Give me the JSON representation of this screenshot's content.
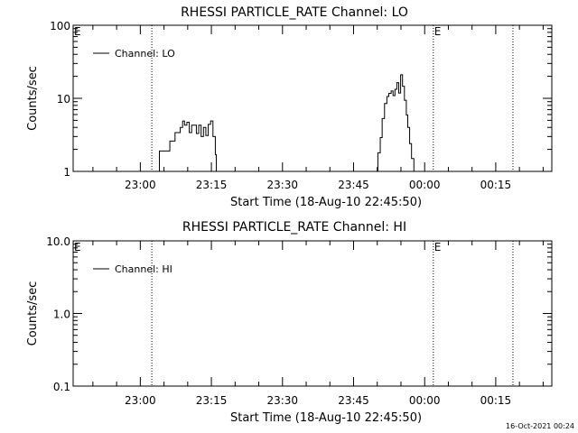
{
  "footer_timestamp": "16-Oct-2021 00:24",
  "chart_data": [
    {
      "type": "line",
      "title": "RHESSI PARTICLE_RATE Channel: LO",
      "xlabel": "Start Time (18-Aug-10 22:45:50)",
      "ylabel": "Counts/sec",
      "y_scale": "log",
      "ylim": [
        1,
        100
      ],
      "y_ticks": [
        1,
        10,
        100
      ],
      "y_tick_labels": [
        "1",
        "10",
        "100"
      ],
      "x_tick_labels": [
        "23:00",
        "23:15",
        "23:30",
        "23:45",
        "00:00",
        "00:15"
      ],
      "x_tick_minutes": [
        14.17,
        29.17,
        44.17,
        59.17,
        74.17,
        89.17
      ],
      "xlim_minutes": [
        0,
        101
      ],
      "event_markers_minutes": [
        16.6,
        76.0,
        92.8
      ],
      "event_marker_labels": [
        "",
        "E",
        ""
      ],
      "edge_label": "E",
      "legend": {
        "position": "top-left",
        "entries": [
          "Channel: LO"
        ]
      },
      "series": [
        {
          "name": "Channel: LO",
          "x": [
            17.9,
            18.2,
            20.2,
            20.4,
            21.2,
            21.5,
            22.2,
            22.6,
            23.1,
            23.5,
            24.0,
            24.5,
            25.0,
            25.5,
            26.0,
            26.5,
            27.0,
            27.5,
            28.0,
            28.5,
            29.0,
            29.5,
            30.0,
            30.2
          ],
          "values": [
            1,
            1.9,
            1.9,
            2.6,
            2.6,
            3.4,
            3.4,
            4.0,
            4.9,
            4.3,
            4.7,
            3.4,
            4.3,
            4.3,
            3.3,
            4.3,
            3.0,
            4.0,
            3.1,
            4.4,
            4.9,
            3.0,
            1.7,
            1
          ],
          "mode": "steps"
        },
        {
          "name": "Channel: LO",
          "x": [
            63.9,
            64.3,
            64.8,
            65.2,
            65.7,
            66.2,
            66.6,
            67.1,
            67.5,
            67.9,
            68.3,
            68.7,
            69.1,
            69.5,
            69.9,
            70.3,
            70.6,
            71.0,
            71.4,
            71.9
          ],
          "values": [
            1,
            1.8,
            2.9,
            5.3,
            8.5,
            10.6,
            11.7,
            12.6,
            10.9,
            13.3,
            16.4,
            11.8,
            21.0,
            14.6,
            9.4,
            5.9,
            4.0,
            2.4,
            1.5,
            1
          ],
          "mode": "steps"
        }
      ]
    },
    {
      "type": "line",
      "title": "RHESSI PARTICLE_RATE Channel: HI",
      "xlabel": "Start Time (18-Aug-10 22:45:50)",
      "ylabel": "Counts/sec",
      "y_scale": "log",
      "ylim": [
        0.1,
        10
      ],
      "y_ticks": [
        0.1,
        1,
        10
      ],
      "y_tick_labels": [
        "0.1",
        "1.0",
        "10.0"
      ],
      "x_tick_labels": [
        "23:00",
        "23:15",
        "23:30",
        "23:45",
        "00:00",
        "00:15"
      ],
      "x_tick_minutes": [
        14.17,
        29.17,
        44.17,
        59.17,
        74.17,
        89.17
      ],
      "xlim_minutes": [
        0,
        101
      ],
      "event_markers_minutes": [
        16.6,
        76.0,
        92.8
      ],
      "event_marker_labels": [
        "",
        "E",
        ""
      ],
      "edge_label": "E",
      "legend": {
        "position": "top-left",
        "entries": [
          "Channel: HI"
        ]
      },
      "series": []
    }
  ]
}
